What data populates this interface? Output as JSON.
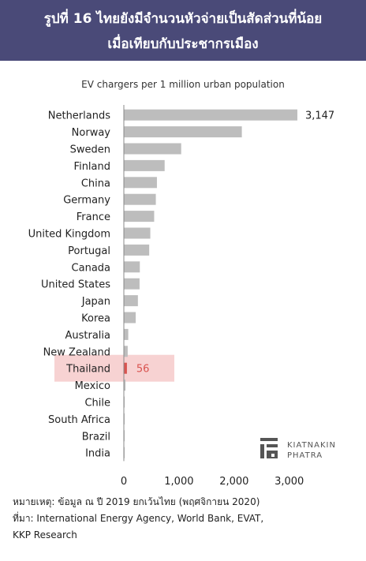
{
  "header": {
    "title_line1": "รูปที่ 16 ไทยยังมีจำนวนหัวจ่ายเป็นสัดส่วนที่น้อย",
    "title_line2": "เมื่อเทียบกับประชากรเมือง"
  },
  "notes": {
    "note": "หมายเหตุ: ข้อมูล ณ ปี 2019 ยกเว้นไทย (พฤศจิกายน 2020)",
    "source_line1": "ที่มา: International Energy Agency, World Bank, EVAT,",
    "source_line2": "KKP Research"
  },
  "logo": {
    "line1": "KIATNAKIN",
    "line2": "PHATRA"
  },
  "colors": {
    "header_bg": "#4a4a78",
    "bar": "#bdbdbd",
    "highlight_bar": "#d9534f",
    "highlight_bg": "#f7d2d2"
  },
  "chart_data": {
    "type": "bar",
    "orientation": "horizontal",
    "subtitle": "EV chargers per 1 million urban population",
    "categories": [
      "Netherlands",
      "Norway",
      "Sweden",
      "Finland",
      "China",
      "Germany",
      "France",
      "United Kingdom",
      "Portugal",
      "Canada",
      "United States",
      "Japan",
      "Korea",
      "Australia",
      "New Zealand",
      "Thailand",
      "Mexico",
      "Chile",
      "South Africa",
      "Brazil",
      "India"
    ],
    "values": [
      3147,
      2140,
      1040,
      740,
      600,
      580,
      550,
      480,
      460,
      290,
      285,
      255,
      215,
      80,
      70,
      56,
      30,
      15,
      5,
      4,
      2
    ],
    "data_labels": {
      "Netherlands": "3,147",
      "Thailand": "56"
    },
    "highlight": "Thailand",
    "xlim": [
      0,
      3300
    ],
    "xticks": [
      0,
      1000,
      2000,
      3000
    ],
    "xtick_labels": [
      "0",
      "1,000",
      "2,000",
      "3,000"
    ],
    "grid": false,
    "legend": "none"
  }
}
